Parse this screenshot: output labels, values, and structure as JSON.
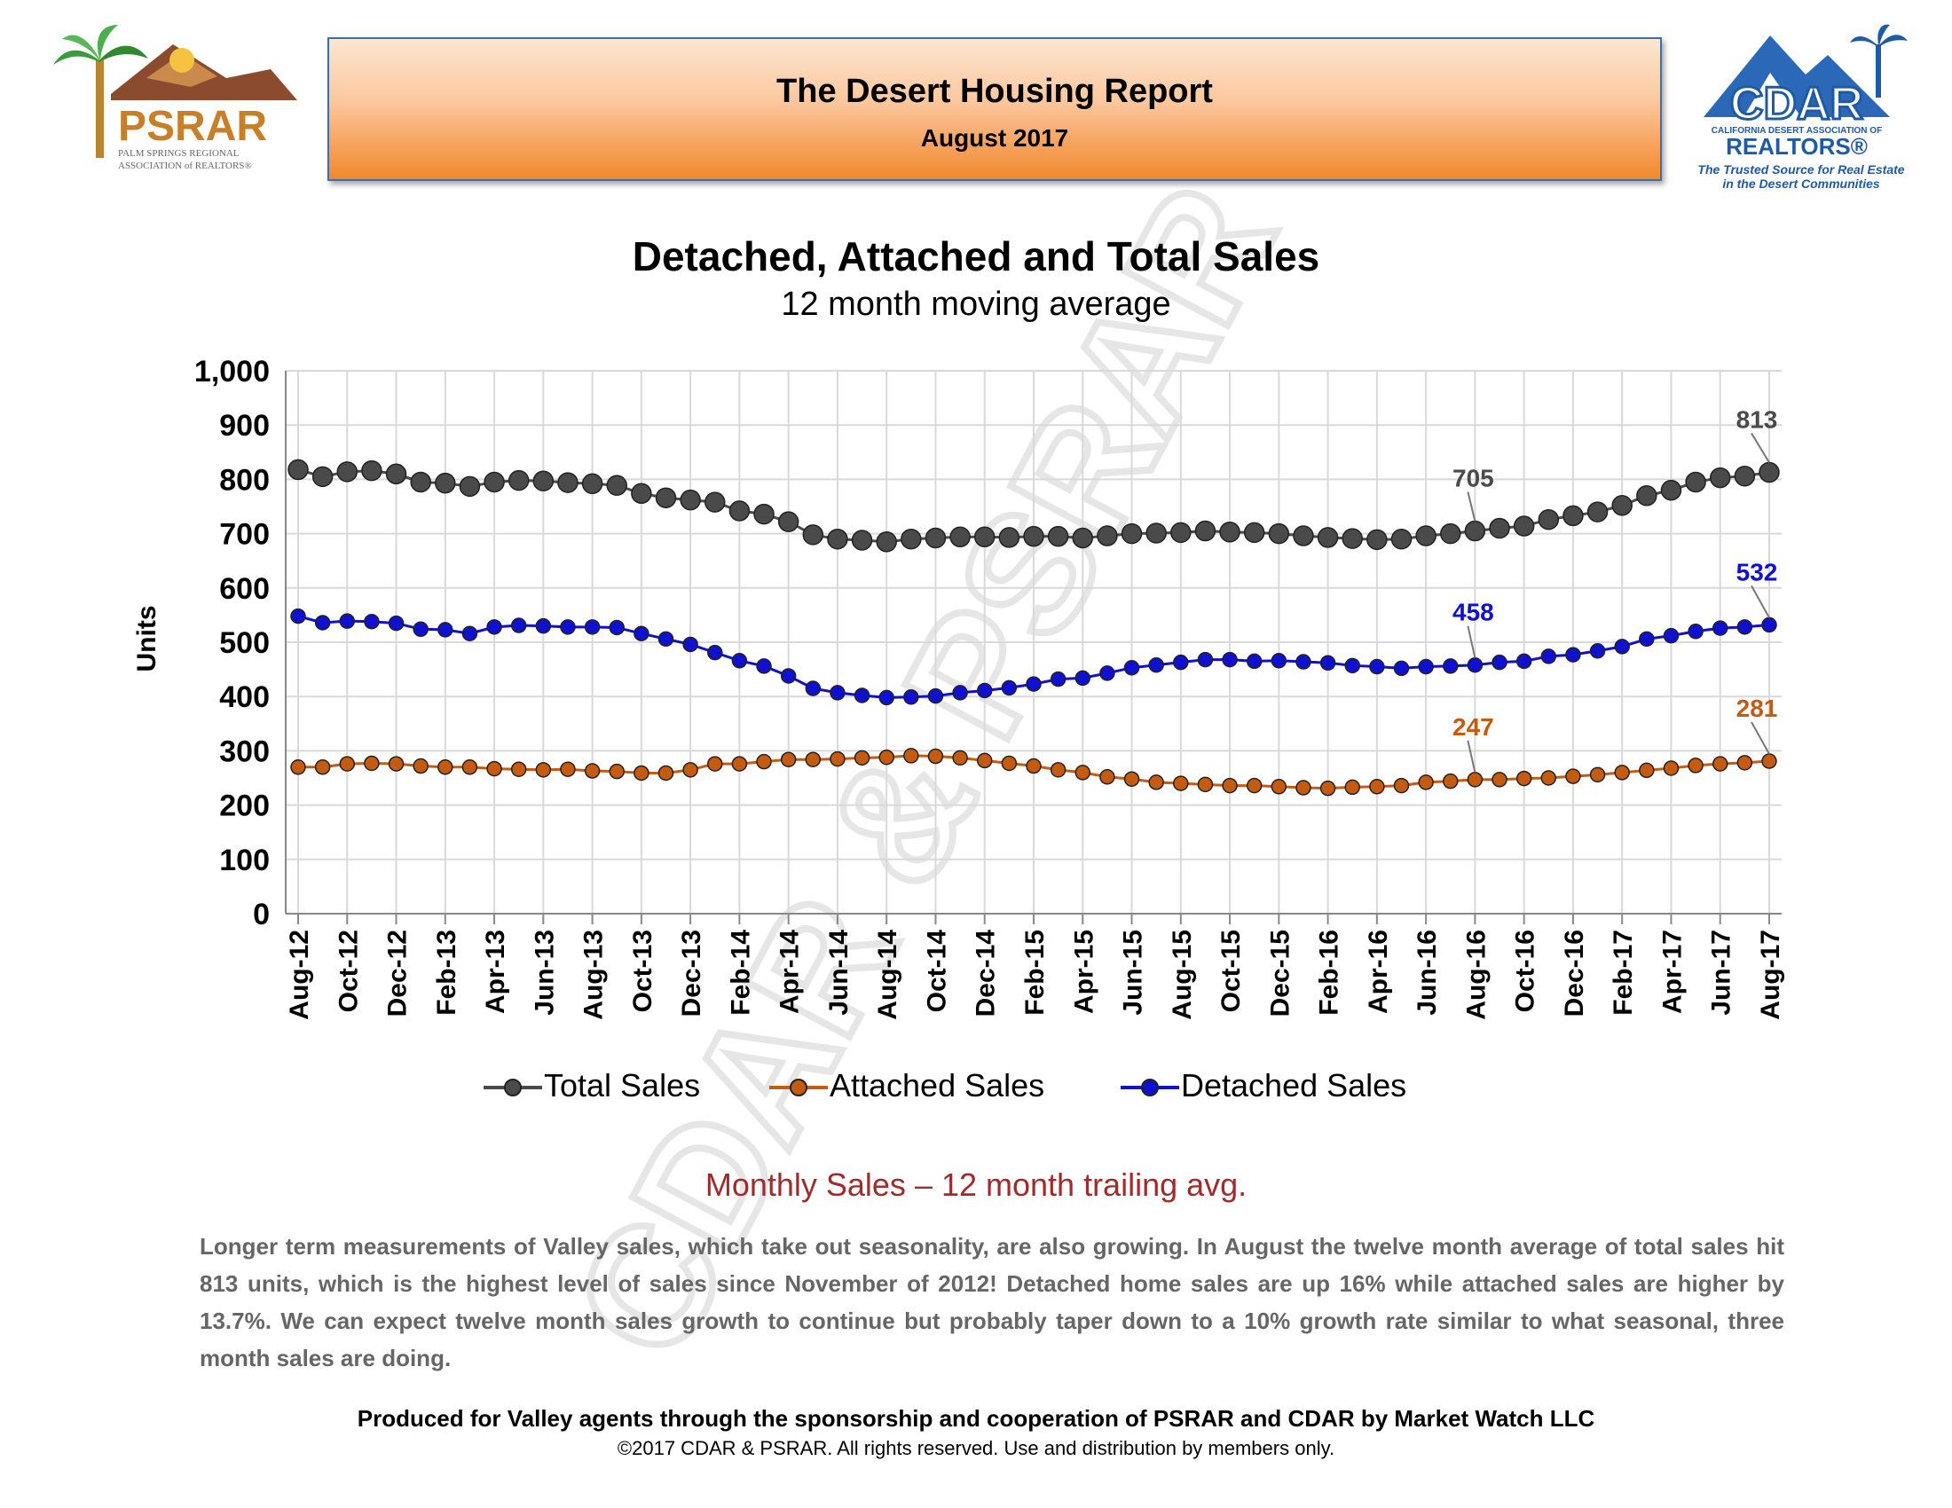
{
  "header": {
    "title": "The Desert Housing Report",
    "subtitle": "August 2017"
  },
  "logos": {
    "psrar": {
      "name": "PSRAR",
      "line1": "PALM SPRINGS REGIONAL",
      "line2": "ASSOCIATION of REALTORS®"
    },
    "cdar": {
      "name": "CDAR",
      "association": "CALIFORNIA DESERT ASSOCIATION OF",
      "realtors": "REALTORS®",
      "tagline_1": "The Trusted Source for Real Estate",
      "tagline_2": "in the Desert Communities"
    }
  },
  "watermark": "CDAR & PSRAR",
  "colors": {
    "total": "#4a4a4a",
    "attached": "#c55a11",
    "detached": "#1010d0",
    "grid": "#d9d9d9"
  },
  "chart_data": {
    "type": "line",
    "title": "Detached, Attached and Total Sales",
    "subtitle": "12 month moving average",
    "ylabel": "Units",
    "ylim": [
      0,
      1000
    ],
    "yticks": [
      "0",
      "100",
      "200",
      "300",
      "400",
      "500",
      "600",
      "700",
      "800",
      "900",
      "1,000"
    ],
    "x": [
      "Aug-12",
      "Sep-12",
      "Oct-12",
      "Nov-12",
      "Dec-12",
      "Jan-13",
      "Feb-13",
      "Mar-13",
      "Apr-13",
      "May-13",
      "Jun-13",
      "Jul-13",
      "Aug-13",
      "Sep-13",
      "Oct-13",
      "Nov-13",
      "Dec-13",
      "Jan-14",
      "Feb-14",
      "Mar-14",
      "Apr-14",
      "May-14",
      "Jun-14",
      "Jul-14",
      "Aug-14",
      "Sep-14",
      "Oct-14",
      "Nov-14",
      "Dec-14",
      "Jan-15",
      "Feb-15",
      "Mar-15",
      "Apr-15",
      "May-15",
      "Jun-15",
      "Jul-15",
      "Aug-15",
      "Sep-15",
      "Oct-15",
      "Nov-15",
      "Dec-15",
      "Jan-16",
      "Feb-16",
      "Mar-16",
      "Apr-16",
      "May-16",
      "Jun-16",
      "Jul-16",
      "Aug-16",
      "Sep-16",
      "Oct-16",
      "Nov-16",
      "Dec-16",
      "Jan-17",
      "Feb-17",
      "Mar-17",
      "Apr-17",
      "May-17",
      "Jun-17",
      "Jul-17",
      "Aug-17"
    ],
    "xtick_labels": [
      "Aug-12",
      "Oct-12",
      "Dec-12",
      "Feb-13",
      "Apr-13",
      "Jun-13",
      "Aug-13",
      "Oct-13",
      "Dec-13",
      "Feb-14",
      "Apr-14",
      "Jun-14",
      "Aug-14",
      "Oct-14",
      "Dec-14",
      "Feb-15",
      "Apr-15",
      "Jun-15",
      "Aug-15",
      "Oct-15",
      "Dec-15",
      "Feb-16",
      "Apr-16",
      "Jun-16",
      "Aug-16",
      "Oct-16",
      "Dec-16",
      "Feb-17",
      "Apr-17",
      "Jun-17",
      "Aug-17"
    ],
    "series": [
      {
        "name": "Total Sales",
        "values": [
          818,
          805,
          814,
          816,
          810,
          795,
          793,
          787,
          795,
          798,
          797,
          794,
          792,
          789,
          774,
          766,
          762,
          758,
          742,
          736,
          722,
          698,
          690,
          688,
          685,
          690,
          692,
          694,
          694,
          693,
          695,
          695,
          692,
          696,
          700,
          701,
          702,
          705,
          703,
          702,
          700,
          696,
          693,
          691,
          689,
          690,
          696,
          700,
          705,
          710,
          714,
          726,
          733,
          740,
          752,
          770,
          780,
          795,
          803,
          806,
          813
        ],
        "labels": [
          {
            "index": 48,
            "text": "705"
          },
          {
            "index": 60,
            "text": "813"
          }
        ]
      },
      {
        "name": "Attached Sales",
        "values": [
          270,
          270,
          276,
          277,
          276,
          272,
          270,
          270,
          267,
          266,
          265,
          266,
          263,
          262,
          259,
          259,
          265,
          276,
          276,
          280,
          284,
          284,
          285,
          287,
          288,
          291,
          290,
          287,
          282,
          277,
          272,
          265,
          260,
          252,
          248,
          242,
          240,
          238,
          236,
          236,
          234,
          232,
          231,
          233,
          234,
          236,
          242,
          244,
          247,
          247,
          249,
          250,
          253,
          256,
          260,
          264,
          268,
          273,
          276,
          278,
          281
        ],
        "labels": [
          {
            "index": 48,
            "text": "247"
          },
          {
            "index": 60,
            "text": "281"
          }
        ]
      },
      {
        "name": "Detached Sales",
        "values": [
          548,
          536,
          539,
          538,
          535,
          524,
          523,
          516,
          528,
          531,
          530,
          528,
          528,
          527,
          516,
          506,
          496,
          481,
          466,
          456,
          438,
          415,
          407,
          402,
          398,
          399,
          401,
          407,
          411,
          416,
          423,
          432,
          434,
          443,
          453,
          458,
          463,
          468,
          468,
          465,
          466,
          464,
          462,
          457,
          455,
          452,
          455,
          456,
          458,
          463,
          465,
          474,
          477,
          484,
          492,
          506,
          512,
          520,
          526,
          528,
          532
        ],
        "labels": [
          {
            "index": 48,
            "text": "458"
          },
          {
            "index": 60,
            "text": "532"
          }
        ]
      }
    ],
    "legend": [
      "Total Sales",
      "Attached Sales",
      "Detached Sales"
    ],
    "legend_position": "bottom"
  },
  "summary": {
    "section_title": "Monthly Sales – 12 month trailing avg.",
    "body": "Longer term measurements of Valley sales, which take out seasonality, are also growing. In August the twelve month average of total sales hit 813 units, which is the highest level of sales since November of 2012! Detached home sales are up 16% while attached sales are higher by 13.7%. We can expect twelve month sales growth to continue but probably taper down to a 10% growth rate similar to what seasonal, three month sales are doing."
  },
  "footer": {
    "line1": "Produced for Valley agents through the sponsorship and cooperation of PSRAR and CDAR by Market Watch LLC",
    "line2": "©2017 CDAR & PSRAR.  All rights reserved.  Use and distribution by members only."
  }
}
